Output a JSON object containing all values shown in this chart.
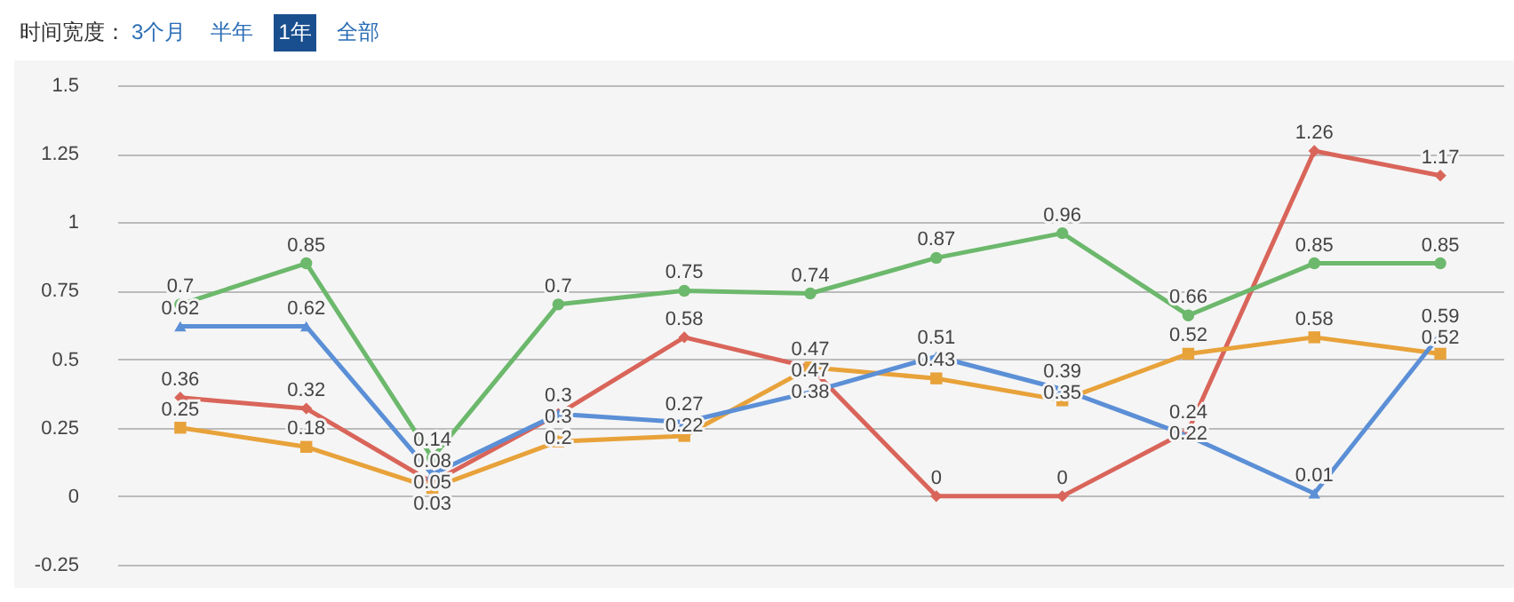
{
  "chart_data": {
    "type": "line",
    "annotations": [
      "时间宽度：",
      "3个月",
      "半年",
      "1年",
      "全部"
    ],
    "categories": [
      null,
      null,
      null,
      null,
      null,
      null,
      null,
      null,
      null,
      null,
      null
    ],
    "series": [
      {
        "color": "#d9655a",
        "marker": "diamond",
        "values": [
          0.36,
          0.32,
          0.05,
          0.3,
          0.58,
          0.47,
          0,
          0,
          0.24,
          1.26,
          1.17
        ]
      },
      {
        "color": "#e8a23a",
        "marker": "square",
        "values": [
          0.25,
          0.18,
          0.03,
          0.2,
          0.22,
          0.47,
          0.43,
          0.35,
          0.52,
          0.58,
          0.52
        ]
      },
      {
        "color": "#5b8fd6",
        "marker": "triangle",
        "values": [
          0.62,
          0.62,
          0.08,
          0.3,
          0.27,
          0.38,
          0.51,
          0.39,
          0.22,
          0.01,
          0.59
        ]
      },
      {
        "color": "#6cb86c",
        "marker": "circle",
        "values": [
          0.7,
          0.85,
          0.14,
          0.7,
          0.75,
          0.74,
          0.87,
          0.96,
          0.66,
          0.85,
          0.85
        ]
      }
    ],
    "ylim": [
      -0.25,
      1.5
    ],
    "yticks": [
      -0.25,
      0,
      0.25,
      0.5,
      0.75,
      1,
      1.25,
      1.5
    ],
    "grid": "y",
    "data_labels": true,
    "legend": false
  }
}
